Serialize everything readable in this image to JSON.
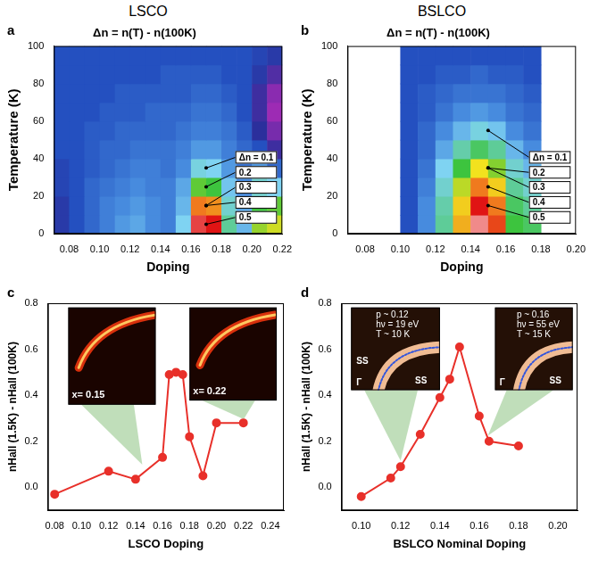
{
  "chart_data": [
    {
      "type": "heatmap",
      "title": "LSCO",
      "subtitle": "Δn = n(T) - n(100K)",
      "panel_label": "a",
      "x_label": "Doping",
      "y_label": "Temperature (K)",
      "x": [
        0.075,
        0.085,
        0.095,
        0.105,
        0.115,
        0.125,
        0.135,
        0.145,
        0.155,
        0.165,
        0.175,
        0.185,
        0.195,
        0.205,
        0.215
      ],
      "y": [
        5,
        15,
        25,
        35,
        45,
        55,
        65,
        75,
        85,
        95
      ],
      "z": [
        [
          -0.02,
          0.0,
          0.02,
          0.04,
          0.06,
          0.07,
          0.05,
          0.04,
          0.1,
          0.52,
          0.5,
          0.15,
          0.08,
          0.25,
          0.28
        ],
        [
          -0.02,
          0.0,
          0.02,
          0.04,
          0.05,
          0.06,
          0.05,
          0.04,
          0.08,
          0.4,
          0.38,
          0.12,
          0.07,
          0.2,
          0.22
        ],
        [
          -0.01,
          0.0,
          0.02,
          0.03,
          0.04,
          0.05,
          0.04,
          0.04,
          0.07,
          0.22,
          0.2,
          0.09,
          0.05,
          0.12,
          0.1
        ],
        [
          -0.01,
          0.0,
          0.01,
          0.02,
          0.03,
          0.04,
          0.04,
          0.03,
          0.05,
          0.11,
          0.1,
          0.06,
          0.03,
          0.06,
          0.02
        ],
        [
          0.0,
          0.0,
          0.01,
          0.02,
          0.02,
          0.03,
          0.03,
          0.03,
          0.04,
          0.06,
          0.06,
          0.04,
          0.02,
          0.0,
          -0.04
        ],
        [
          0.0,
          0.0,
          0.01,
          0.01,
          0.02,
          0.02,
          0.02,
          0.02,
          0.03,
          0.04,
          0.04,
          0.03,
          0.01,
          -0.03,
          -0.07
        ],
        [
          0.0,
          0.0,
          0.0,
          0.01,
          0.01,
          0.01,
          0.02,
          0.02,
          0.02,
          0.03,
          0.03,
          0.02,
          0.0,
          -0.04,
          -0.09
        ],
        [
          0.0,
          0.0,
          0.0,
          0.0,
          0.01,
          0.01,
          0.01,
          0.01,
          0.01,
          0.02,
          0.02,
          0.01,
          0.0,
          -0.04,
          -0.08
        ],
        [
          0.0,
          0.0,
          0.0,
          0.0,
          0.0,
          0.0,
          0.0,
          0.01,
          0.01,
          0.01,
          0.01,
          0.0,
          0.0,
          -0.02,
          -0.05
        ],
        [
          0.0,
          0.0,
          0.0,
          0.0,
          0.0,
          0.0,
          0.0,
          0.0,
          0.0,
          0.0,
          0.0,
          0.0,
          0.0,
          -0.01,
          -0.02
        ]
      ],
      "zlim": [
        -0.1,
        0.6
      ],
      "xlim": [
        0.07,
        0.22
      ],
      "xticks": [
        0.08,
        {
          "value": 0.1,
          "label": "0.10"
        },
        0.12,
        0.14,
        0.16,
        0.18,
        {
          "value": 0.2,
          "label": "0.20"
        },
        0.22
      ],
      "ylim": [
        0,
        100
      ],
      "yticks": [
        0,
        20,
        40,
        60,
        80,
        100
      ],
      "grid": false,
      "contour_labels": [
        {
          "value": 0.1,
          "label": "Δn = 0.1"
        },
        {
          "value": 0.2,
          "label": "0.2"
        },
        {
          "value": 0.3,
          "label": "0.3"
        },
        {
          "value": 0.4,
          "label": "0.4"
        },
        {
          "value": 0.5,
          "label": "0.5"
        }
      ]
    },
    {
      "type": "heatmap",
      "title": "BSLCO",
      "subtitle": "Δn = n(T) - n(100K)",
      "panel_label": "b",
      "x_label": "Doping",
      "y_label": "Temperature (K)",
      "x": [
        0.105,
        0.115,
        0.125,
        0.135,
        0.145,
        0.155,
        0.165,
        0.175
      ],
      "y": [
        5,
        15,
        25,
        35,
        45,
        55,
        65,
        75,
        85,
        95
      ],
      "z": [
        [
          0.0,
          0.05,
          0.15,
          0.35,
          0.55,
          0.45,
          0.2,
          0.18
        ],
        [
          0.0,
          0.05,
          0.14,
          0.32,
          0.5,
          0.4,
          0.18,
          0.15
        ],
        [
          0.0,
          0.04,
          0.12,
          0.27,
          0.4,
          0.32,
          0.15,
          0.12
        ],
        [
          0.0,
          0.03,
          0.1,
          0.2,
          0.3,
          0.24,
          0.12,
          0.08
        ],
        [
          0.0,
          0.02,
          0.07,
          0.14,
          0.18,
          0.15,
          0.08,
          0.05
        ],
        [
          0.0,
          0.02,
          0.05,
          0.08,
          0.11,
          0.09,
          0.05,
          0.03
        ],
        [
          0.0,
          0.01,
          0.03,
          0.05,
          0.06,
          0.05,
          0.03,
          0.02
        ],
        [
          0.0,
          0.01,
          0.02,
          0.03,
          0.03,
          0.03,
          0.02,
          0.01
        ],
        [
          0.0,
          0.0,
          0.01,
          0.01,
          0.02,
          0.01,
          0.01,
          0.0
        ],
        [
          0.0,
          0.0,
          0.0,
          0.0,
          0.0,
          0.0,
          0.0,
          0.0
        ]
      ],
      "zlim": [
        -0.1,
        0.6
      ],
      "xlim": [
        0.07,
        0.2
      ],
      "xticks": [
        0.08,
        {
          "value": 0.1,
          "label": "0.10"
        },
        0.12,
        0.14,
        0.16,
        0.18,
        {
          "value": 0.2,
          "label": "0.20"
        }
      ],
      "ylim": [
        0,
        100
      ],
      "yticks": [
        0,
        20,
        40,
        60,
        80,
        100
      ],
      "grid": false,
      "contour_labels": [
        {
          "value": 0.1,
          "label": "Δn = 0.1"
        },
        {
          "value": 0.2,
          "label": "0.2"
        },
        {
          "value": 0.3,
          "label": "0.3"
        },
        {
          "value": 0.4,
          "label": "0.4"
        },
        {
          "value": 0.5,
          "label": "0.5"
        }
      ]
    },
    {
      "type": "line",
      "panel_label": "c",
      "x_label": "LSCO Doping",
      "y_label": "nHall (1.5K) - nHall (100K)",
      "x": [
        0.08,
        0.12,
        0.14,
        0.16,
        0.165,
        0.17,
        0.175,
        0.18,
        0.19,
        0.2,
        0.22
      ],
      "values": [
        -0.03,
        0.07,
        0.035,
        0.13,
        0.49,
        0.5,
        0.49,
        0.22,
        0.05,
        0.28,
        0.28
      ],
      "color": "#e8302a",
      "marker": "circle",
      "line_style": "solid",
      "xlim": [
        0.075,
        0.25
      ],
      "xticks": [
        0.08,
        {
          "value": 0.1,
          "label": "0.10"
        },
        0.12,
        0.14,
        0.16,
        0.18,
        {
          "value": 0.2,
          "label": "0.20"
        },
        0.22,
        0.24
      ],
      "ylim": [
        -0.1,
        0.8
      ],
      "yticks": [
        {
          "value": 0,
          "label": "0.0"
        },
        0.2,
        0.4,
        0.6,
        0.8
      ],
      "grid": false,
      "insets": [
        {
          "texts": [
            "x= 0.15"
          ],
          "marks": []
        },
        {
          "texts": [
            "x= 0.22"
          ],
          "marks": []
        }
      ]
    },
    {
      "type": "line",
      "panel_label": "d",
      "x_label": "BSLCO Nominal Doping",
      "y_label": "nHall (1.5K) - nHall (100K)",
      "x": [
        0.1,
        0.115,
        0.12,
        0.13,
        0.14,
        0.145,
        0.15,
        0.16,
        0.165,
        0.18
      ],
      "values": [
        -0.04,
        0.04,
        0.09,
        0.23,
        0.39,
        0.47,
        0.61,
        0.31,
        0.2,
        0.18
      ],
      "color": "#e8302a",
      "marker": "circle",
      "line_style": "solid",
      "xlim": [
        0.09,
        0.21
      ],
      "xticks": [
        {
          "value": 0.1,
          "label": "0.10"
        },
        0.12,
        0.14,
        0.16,
        0.18,
        {
          "value": 0.2,
          "label": "0.20"
        }
      ],
      "ylim": [
        -0.1,
        0.8
      ],
      "yticks": [
        {
          "value": 0,
          "label": "0.0"
        },
        0.2,
        0.4,
        0.6,
        0.8
      ],
      "grid": false,
      "insets": [
        {
          "texts": [
            "p ~ 0.12",
            "hν = 19 eV",
            "T ~ 10 K"
          ],
          "marks": [
            "SS",
            "SS",
            "Γ"
          ]
        },
        {
          "texts": [
            "p ~ 0.16",
            "hν = 55 eV",
            "T ~ 15 K"
          ],
          "marks": [
            "SS",
            "Γ"
          ]
        }
      ]
    }
  ]
}
